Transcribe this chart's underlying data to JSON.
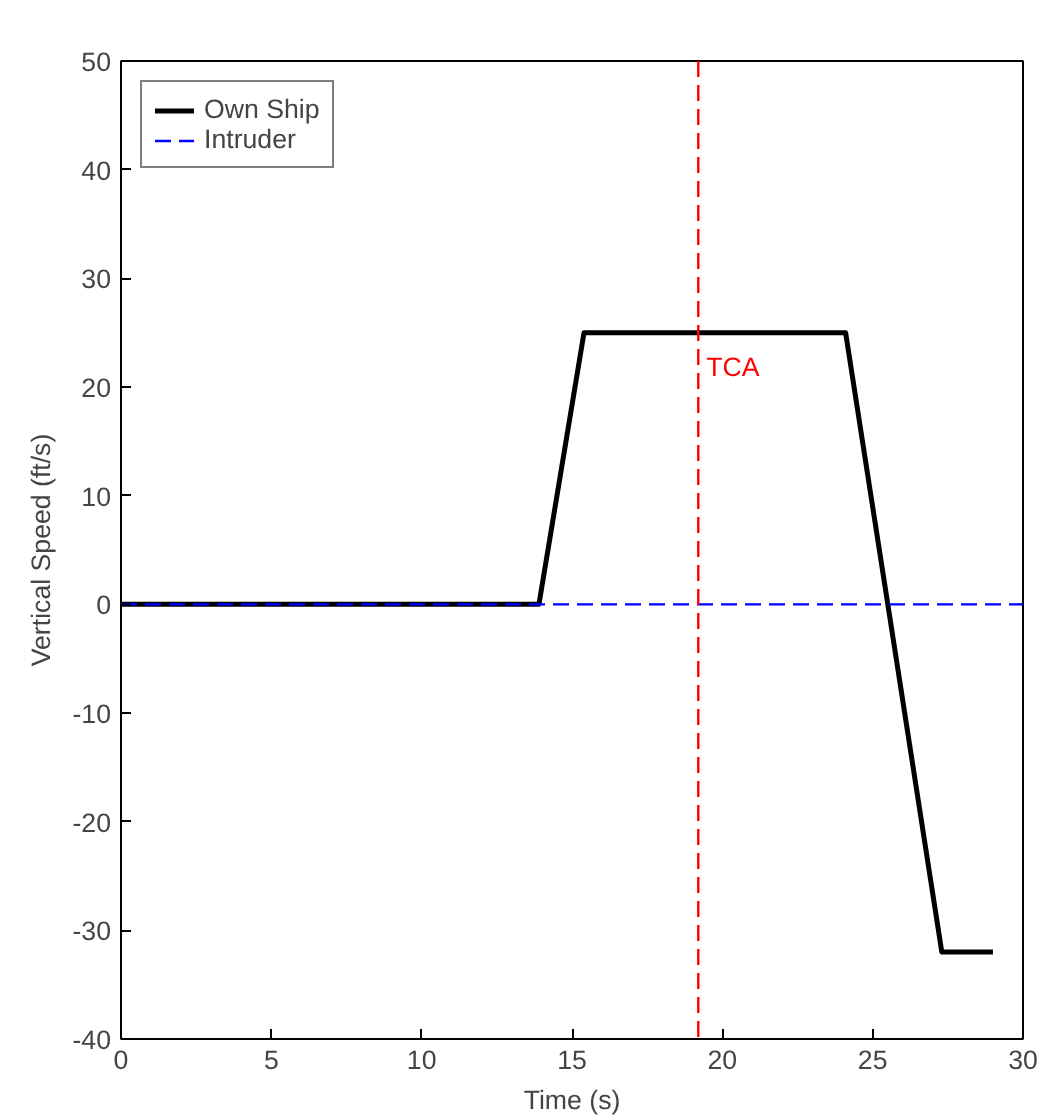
{
  "chart_data": {
    "type": "line",
    "xlabel": "Time (s)",
    "ylabel": "Vertical Speed (ft/s)",
    "xlim": [
      0,
      30
    ],
    "ylim": [
      -40,
      50
    ],
    "xticks": [
      0,
      5,
      10,
      15,
      20,
      25,
      30
    ],
    "yticks": [
      -40,
      -30,
      -20,
      -10,
      0,
      10,
      20,
      30,
      40,
      50
    ],
    "grid": false,
    "legend": "top left",
    "series": [
      {
        "name": "Own Ship",
        "color": "#000000",
        "line_style": "solid",
        "x": [
          0,
          13.9,
          15.4,
          24.1,
          27.3,
          29.0
        ],
        "values": [
          0,
          0,
          25,
          25,
          -32,
          -32
        ]
      },
      {
        "name": "Intruder",
        "color": "#0000ff",
        "line_style": "dashed",
        "x": [
          0,
          30
        ],
        "values": [
          0,
          0
        ]
      }
    ],
    "ref_lines": [
      {
        "axis": "x",
        "value": 19.2,
        "label": "TCA",
        "color": "#ff0000",
        "line_style": "dashed"
      }
    ]
  }
}
